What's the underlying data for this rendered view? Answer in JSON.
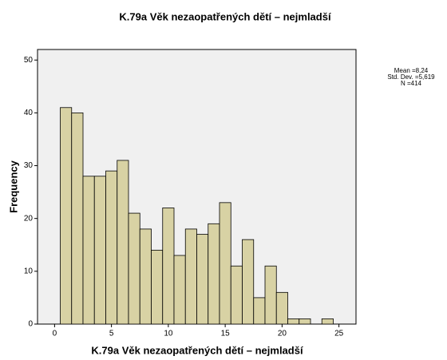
{
  "chart_data": {
    "type": "histogram",
    "title": "K.79a Věk nezaopatřených dětí – nejmladší",
    "xlabel": "K.79a Věk nezaopatřených dětí – nejmladší",
    "ylabel": "Frequency",
    "bins": [
      0.5,
      1.5,
      2.5,
      3.5,
      4.5,
      5.5,
      6.5,
      7.5,
      8.5,
      9.5,
      10.5,
      11.5,
      12.5,
      13.5,
      14.5,
      15.5,
      16.5,
      17.5,
      18.5,
      19.5,
      20.5,
      21.5,
      22.5,
      23.5,
      24.5
    ],
    "values": [
      41,
      40,
      28,
      28,
      29,
      31,
      21,
      18,
      14,
      22,
      13,
      18,
      17,
      19,
      23,
      11,
      16,
      5,
      11,
      6,
      1,
      1,
      0,
      1
    ],
    "color": "#d8d2a4",
    "xlim": [
      -1.5,
      26.5
    ],
    "ylim": [
      0,
      52
    ],
    "xticks": [
      0,
      5,
      10,
      15,
      20,
      25
    ],
    "yticks": [
      0,
      10,
      20,
      30,
      40,
      50
    ],
    "annotations": [
      "Mean =8,24",
      "Std. Dev. =5,619",
      "N =414"
    ]
  }
}
